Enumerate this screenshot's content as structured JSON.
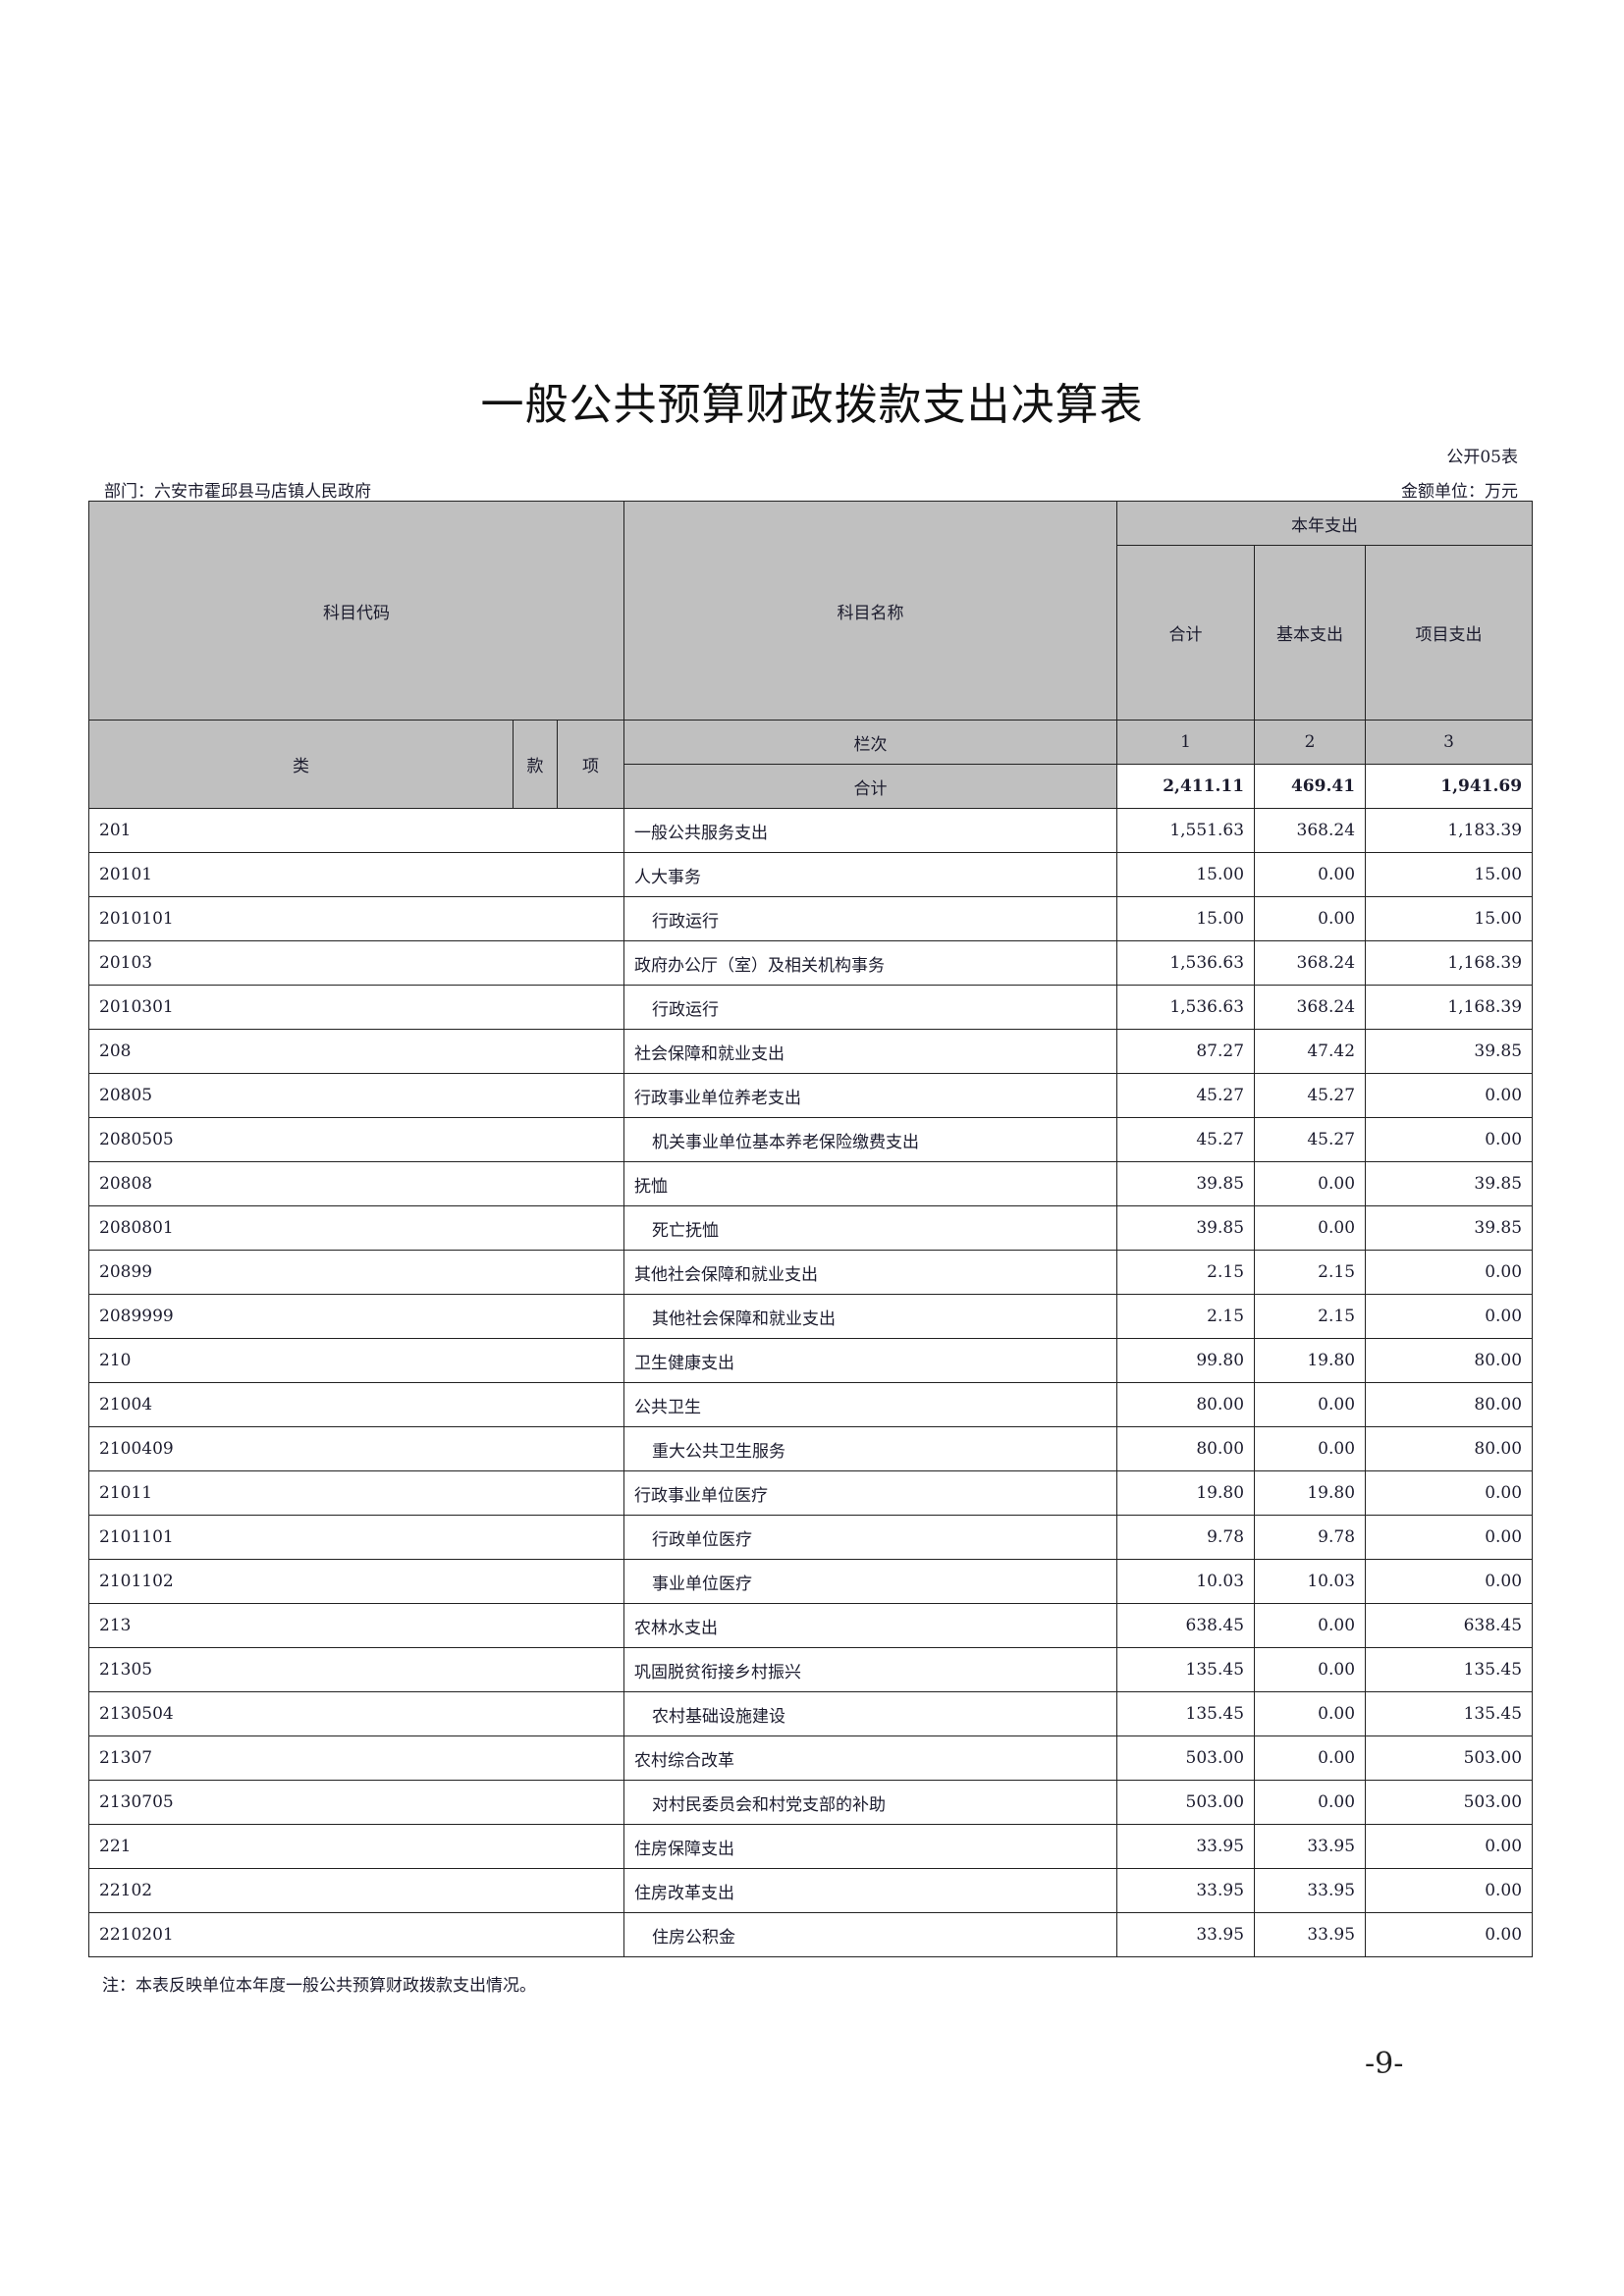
{
  "title": "一般公共预算财政拨款支出决算表",
  "form_no": "公开05表",
  "department": "部门：六安市霍邱县马店镇人民政府",
  "unit": "金额单位：万元",
  "header": {
    "code": "科目代码",
    "name": "科目名称",
    "current_year": "本年支出",
    "total": "合计",
    "basic": "基本支出",
    "project": "项目支出",
    "lei": "类",
    "kuan": "款",
    "xiang": "项",
    "column_index": "栏次",
    "col1": "1",
    "col2": "2",
    "col3": "3",
    "sum_label": "合计"
  },
  "totals": {
    "total": "2,411.11",
    "basic": "469.41",
    "project": "1,941.69"
  },
  "rows": [
    {
      "code": "201",
      "name": "一般公共服务支出",
      "total": "1,551.63",
      "basic": "368.24",
      "project": "1,183.39"
    },
    {
      "code": "20101",
      "name": "人大事务",
      "total": "15.00",
      "basic": "0.00",
      "project": "15.00"
    },
    {
      "code": "2010101",
      "name": "行政运行",
      "total": "15.00",
      "basic": "0.00",
      "project": "15.00"
    },
    {
      "code": "20103",
      "name": "政府办公厅（室）及相关机构事务",
      "total": "1,536.63",
      "basic": "368.24",
      "project": "1,168.39"
    },
    {
      "code": "2010301",
      "name": "行政运行",
      "total": "1,536.63",
      "basic": "368.24",
      "project": "1,168.39"
    },
    {
      "code": "208",
      "name": "社会保障和就业支出",
      "total": "87.27",
      "basic": "47.42",
      "project": "39.85"
    },
    {
      "code": "20805",
      "name": "行政事业单位养老支出",
      "total": "45.27",
      "basic": "45.27",
      "project": "0.00"
    },
    {
      "code": "2080505",
      "name": "机关事业单位基本养老保险缴费支出",
      "total": "45.27",
      "basic": "45.27",
      "project": "0.00"
    },
    {
      "code": "20808",
      "name": "抚恤",
      "total": "39.85",
      "basic": "0.00",
      "project": "39.85"
    },
    {
      "code": "2080801",
      "name": "死亡抚恤",
      "total": "39.85",
      "basic": "0.00",
      "project": "39.85"
    },
    {
      "code": "20899",
      "name": "其他社会保障和就业支出",
      "total": "2.15",
      "basic": "2.15",
      "project": "0.00"
    },
    {
      "code": "2089999",
      "name": "其他社会保障和就业支出",
      "total": "2.15",
      "basic": "2.15",
      "project": "0.00"
    },
    {
      "code": "210",
      "name": "卫生健康支出",
      "total": "99.80",
      "basic": "19.80",
      "project": "80.00"
    },
    {
      "code": "21004",
      "name": "公共卫生",
      "total": "80.00",
      "basic": "0.00",
      "project": "80.00"
    },
    {
      "code": "2100409",
      "name": "重大公共卫生服务",
      "total": "80.00",
      "basic": "0.00",
      "project": "80.00"
    },
    {
      "code": "21011",
      "name": "行政事业单位医疗",
      "total": "19.80",
      "basic": "19.80",
      "project": "0.00"
    },
    {
      "code": "2101101",
      "name": "行政单位医疗",
      "total": "9.78",
      "basic": "9.78",
      "project": "0.00"
    },
    {
      "code": "2101102",
      "name": "事业单位医疗",
      "total": "10.03",
      "basic": "10.03",
      "project": "0.00"
    },
    {
      "code": "213",
      "name": "农林水支出",
      "total": "638.45",
      "basic": "0.00",
      "project": "638.45"
    },
    {
      "code": "21305",
      "name": "巩固脱贫衔接乡村振兴",
      "total": "135.45",
      "basic": "0.00",
      "project": "135.45"
    },
    {
      "code": "2130504",
      "name": "农村基础设施建设",
      "total": "135.45",
      "basic": "0.00",
      "project": "135.45"
    },
    {
      "code": "21307",
      "name": "农村综合改革",
      "total": "503.00",
      "basic": "0.00",
      "project": "503.00"
    },
    {
      "code": "2130705",
      "name": "对村民委员会和村党支部的补助",
      "total": "503.00",
      "basic": "0.00",
      "project": "503.00"
    },
    {
      "code": "221",
      "name": "住房保障支出",
      "total": "33.95",
      "basic": "33.95",
      "project": "0.00"
    },
    {
      "code": "22102",
      "name": "住房改革支出",
      "total": "33.95",
      "basic": "33.95",
      "project": "0.00"
    },
    {
      "code": "2210201",
      "name": "住房公积金",
      "total": "33.95",
      "basic": "33.95",
      "project": "0.00"
    }
  ],
  "note": "注：本表反映单位本年度一般公共预算财政拨款支出情况。",
  "page_number": "-9-"
}
